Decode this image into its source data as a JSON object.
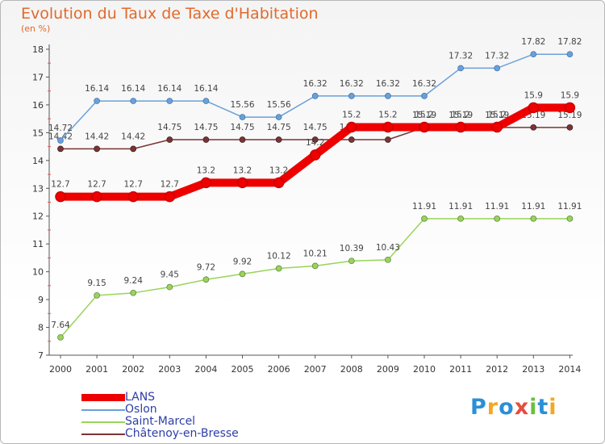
{
  "chart_data": {
    "type": "line",
    "title": "Evolution du Taux de Taxe d'Habitation",
    "unit_label": "(en %)",
    "x": [
      "2000",
      "2001",
      "2002",
      "2003",
      "2004",
      "2005",
      "2006",
      "2007",
      "2008",
      "2009",
      "2010",
      "2011",
      "2012",
      "2013",
      "2014"
    ],
    "y_ticks": [
      "7",
      "8",
      "9",
      "10",
      "11",
      "12",
      "13",
      "14",
      "15",
      "16",
      "17",
      "18"
    ],
    "ylim": [
      7,
      18
    ],
    "grid": false,
    "legend_position": "bottom-left",
    "series": [
      {
        "name": "LANS",
        "color": "#ee0000",
        "width": "thick",
        "values": [
          12.7,
          12.7,
          12.7,
          12.7,
          13.2,
          13.2,
          13.2,
          14.2,
          15.2,
          15.2,
          15.2,
          15.2,
          15.2,
          15.9,
          15.9
        ],
        "labels": [
          "12.7",
          "12.7",
          "12.7",
          "12.7",
          "13.2",
          "13.2",
          "13.2",
          "14.2",
          "15.2",
          "15.2",
          "15.2",
          "15.2",
          "15.2",
          "15.9",
          "15.9"
        ]
      },
      {
        "name": "Oslon",
        "color": "#6aa0d8",
        "width": "thin",
        "values": [
          14.72,
          16.14,
          16.14,
          16.14,
          16.14,
          15.56,
          15.56,
          16.32,
          16.32,
          16.32,
          16.32,
          17.32,
          17.32,
          17.82,
          17.82
        ],
        "labels": [
          "14.72",
          "16.14",
          "16.14",
          "16.14",
          "16.14",
          "15.56",
          "15.56",
          "16.32",
          "16.32",
          "16.32",
          "16.32",
          "17.32",
          "17.32",
          "17.82",
          "17.82"
        ]
      },
      {
        "name": "Saint-Marcel",
        "color": "#99d45a",
        "width": "thin",
        "values": [
          7.64,
          9.15,
          9.24,
          9.45,
          9.72,
          9.92,
          10.12,
          10.21,
          10.39,
          10.43,
          11.91,
          11.91,
          11.91,
          11.91,
          11.91
        ],
        "labels": [
          "7.64",
          "9.15",
          "9.24",
          "9.45",
          "9.72",
          "9.92",
          "10.12",
          "10.21",
          "10.39",
          "10.43",
          "11.91",
          "11.91",
          "11.91",
          "11.91",
          "11.91"
        ]
      },
      {
        "name": "Châtenoy-en-Bresse",
        "color": "#7a3434",
        "width": "thin",
        "values": [
          14.42,
          14.42,
          14.42,
          14.75,
          14.75,
          14.75,
          14.75,
          14.75,
          14.75,
          14.75,
          15.19,
          15.19,
          15.19,
          15.19,
          15.19
        ],
        "labels": [
          "14.42",
          "14.42",
          "14.42",
          "14.75",
          "14.75",
          "14.75",
          "14.75",
          "14.75",
          "14.75",
          "14.75",
          "15.19",
          "15.19",
          "15.19",
          "15.19",
          "15.19"
        ]
      }
    ]
  },
  "logo": {
    "text": "Proxiti",
    "letters": [
      {
        "ch": "P",
        "color": "#2a8fd8"
      },
      {
        "ch": "r",
        "color": "#f5a623"
      },
      {
        "ch": "o",
        "color": "#2a8fd8"
      },
      {
        "ch": "x",
        "color": "#e84c3d"
      },
      {
        "ch": "i",
        "color": "#6abf40"
      },
      {
        "ch": "t",
        "color": "#2a8fd8"
      },
      {
        "ch": "i",
        "color": "#f5a623"
      }
    ]
  }
}
